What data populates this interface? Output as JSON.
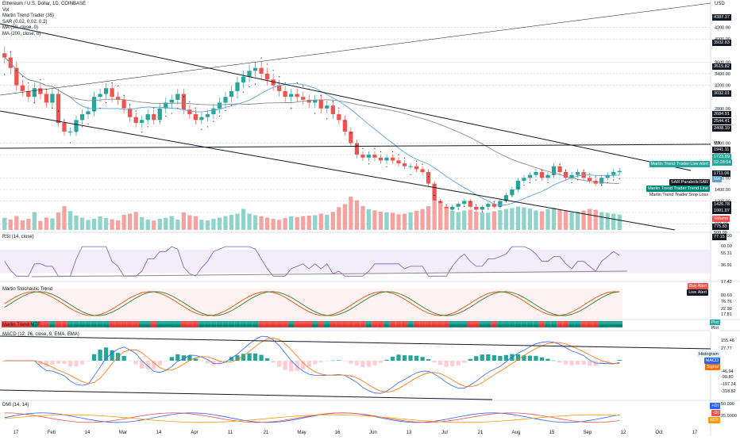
{
  "header": {
    "symbol_line": "Ethereum / U.S. Dollar, 1D, COINBASE",
    "currency": "USD",
    "vol_label": "Vol",
    "indicators": [
      "Martin Trend Trader (35)",
      "SAR (0.02, 0.02, 0.2)",
      "MA (50, close, 0)",
      "MA (200, close, 0)"
    ]
  },
  "colors": {
    "up": "#26a69a",
    "down": "#ef5350",
    "ma50": "#5aa2d6",
    "ma200": "#8c8c8c",
    "rsi": "#7e57c2",
    "stoch_k": "#e65100",
    "stoch_d": "#2e7d32",
    "macd": "#2962ff",
    "signal": "#ff6d00",
    "adx": "#ff9800"
  },
  "chart_data": {
    "type": "candlestick",
    "x_ticks": [
      "17",
      "Feb",
      "14",
      "Mar",
      "14",
      "Apr",
      "11",
      "21",
      "May",
      "16",
      "Jun",
      "13",
      "Jul",
      "21",
      "Aug",
      "15",
      "Sep",
      "12",
      "Oct",
      "17"
    ],
    "price_axis": {
      "ticks": [
        4200.0,
        4000.0,
        3600.0,
        3400.0,
        3200.0,
        2800.0,
        2200.0,
        2000.0,
        1600.0,
        1400.0,
        1200.0,
        1000.0,
        800.0
      ],
      "labels": [
        {
          "text": "4387.37",
          "style": "dark"
        },
        {
          "text": "3932.83",
          "style": "dark"
        },
        {
          "text": "3515.82",
          "style": "dark"
        },
        {
          "text": "3032.01",
          "style": "dark"
        },
        {
          "text": "2684.91",
          "style": "dark"
        },
        {
          "text": "2544.41",
          "style": "dark"
        },
        {
          "text": "2408.10",
          "style": "dark"
        },
        {
          "text": "MA",
          "style": "plain"
        },
        {
          "text": "1941.11",
          "style": "dark"
        },
        {
          "text": "1723.89",
          "style": "green"
        },
        {
          "text": "02:28:54",
          "style": "green"
        },
        {
          "text": "1711.06",
          "style": "dark"
        },
        {
          "text": "MA",
          "style": "blue"
        },
        {
          "text": "1426.78",
          "style": "dark"
        },
        {
          "text": "1001.07",
          "style": "dark"
        },
        {
          "text": "Volume",
          "style": "red"
        },
        {
          "text": "775.83",
          "style": "dark"
        },
        {
          "text": "500.00",
          "style": "plain"
        },
        {
          "text": "77.15",
          "style": "dark"
        }
      ],
      "side_tags": [
        "Martin Trend Trader:Live Alert",
        "SAR:ParabolicSAR",
        "Martin Trend Trader:Trend Line",
        "Martin Trend Trader:Stop Loss"
      ]
    },
    "price_close": [
      3680,
      3500,
      3200,
      3100,
      3000,
      3150,
      3050,
      2900,
      3050,
      2550,
      2400,
      2400,
      2600,
      2700,
      2750,
      3000,
      3050,
      3150,
      3000,
      2950,
      2800,
      2650,
      2550,
      2600,
      2700,
      2600,
      2800,
      2900,
      2950,
      3050,
      2780,
      2700,
      2600,
      2650,
      2700,
      2800,
      2900,
      3000,
      3100,
      3250,
      3350,
      3450,
      3500,
      3400,
      3300,
      3200,
      3100,
      3000,
      3050,
      3000,
      2950,
      2900,
      2950,
      2800,
      2850,
      2700,
      2600,
      2400,
      2200,
      2000,
      1950,
      2000,
      1950,
      1900,
      1950,
      1900,
      1850,
      1800,
      1800,
      1750,
      1700,
      1500,
      1200,
      1100,
      1050,
      1100,
      1150,
      1200,
      1100,
      1050,
      1100,
      1150,
      1100,
      1200,
      1300,
      1400,
      1550,
      1600,
      1650,
      1700,
      1600,
      1650,
      1800,
      1700,
      1600,
      1650,
      1700,
      1600,
      1550,
      1500,
      1600,
      1650,
      1700,
      1720
    ],
    "volume": [
      610,
      520,
      700,
      480,
      560,
      900,
      450,
      620,
      580,
      880,
      1200,
      950,
      730,
      620,
      500,
      560,
      680,
      600,
      540,
      480,
      760,
      820,
      910,
      640,
      520,
      470,
      560,
      610,
      700,
      520,
      880,
      740,
      690,
      510,
      480,
      560,
      620,
      700,
      760,
      820,
      1060,
      820,
      740,
      690,
      620,
      560,
      510,
      600,
      680,
      650,
      690,
      720,
      740,
      820,
      760,
      910,
      1150,
      1300,
      1680,
      1500,
      1200,
      1050,
      980,
      920,
      880,
      860,
      790,
      820,
      880,
      960,
      1050,
      1200,
      1480,
      1350,
      1100,
      960,
      900,
      980,
      1020,
      920,
      870,
      860,
      940,
      1000,
      1060,
      1100,
      1180,
      1140,
      1080,
      980,
      940,
      1050,
      1120,
      1020,
      960,
      880,
      920,
      980,
      1060,
      1020,
      900,
      860,
      820,
      780
    ],
    "rsi": {
      "label": "RSI (14, close)",
      "ticks": [
        "80.00",
        "60.00",
        "55.31",
        "36.91"
      ],
      "badge": "55.31"
    },
    "stochastic": {
      "label": "Martin Stochastic Trend",
      "ticks": [
        "17.42",
        "80.69",
        "76.76",
        "22.98",
        "17.81"
      ],
      "tags": [
        "Buy Alert",
        "Live Alert"
      ]
    },
    "trend_mtf": {
      "label": "Martin Trend MTF",
      "tags": [
        "Plot",
        "Plot"
      ]
    },
    "macd": {
      "label": "MACD (12, 26, close, 9, EMA, EMA)",
      "ticks": [
        "155.46",
        "27.77",
        "-46.94",
        "-90.80",
        "-197.34",
        "-318.82"
      ],
      "tags": [
        "Histogram",
        "MACD",
        "Signal"
      ]
    },
    "dmi": {
      "label": "DMI (14, 14)",
      "ticks": [
        "50.000",
        "25.0000"
      ],
      "tags": [
        "+DI",
        "-DI",
        "ADX"
      ]
    }
  }
}
